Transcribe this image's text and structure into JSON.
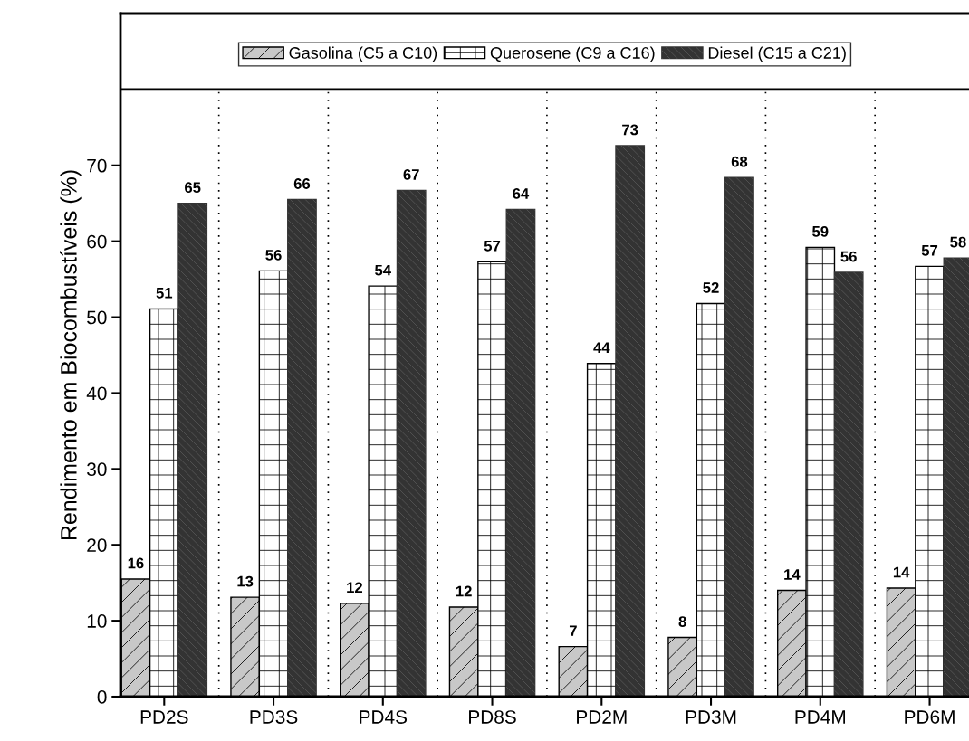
{
  "chart_data": {
    "type": "bar",
    "ylabel": "Rendimento em Biocombustíveis (%)",
    "categories": [
      "PD2S",
      "PD3S",
      "PD4S",
      "PD8S",
      "PD2M",
      "PD3M",
      "PD4M",
      "PD6M"
    ],
    "series": [
      {
        "name": "Gasolina (C5 a C10)",
        "color": "#c8c8c8",
        "values": [
          15.5,
          13.1,
          12.3,
          11.8,
          6.6,
          7.8,
          14.0,
          14.3
        ],
        "value_labels": [
          "16",
          "13",
          "12",
          "12",
          "7",
          "8",
          "14",
          "14"
        ]
      },
      {
        "name": "Querosene (C9 a C16)",
        "color": "#ffffff",
        "values": [
          51.1,
          56.1,
          54.1,
          57.3,
          43.9,
          51.8,
          59.2,
          56.7
        ],
        "value_labels": [
          "51",
          "56",
          "54",
          "57",
          "44",
          "52",
          "59",
          "57"
        ]
      },
      {
        "name": "Diesel (C15 a C21)",
        "color": "#333333",
        "values": [
          65.0,
          65.5,
          66.7,
          64.2,
          72.6,
          68.4,
          55.9,
          57.8
        ],
        "value_labels": [
          "65",
          "66",
          "67",
          "64",
          "73",
          "68",
          "56",
          "58"
        ]
      }
    ],
    "ylim": [
      0,
      90
    ],
    "ref_lines": [
      {
        "axis": "y",
        "value": 80,
        "color": "#000000",
        "line_style": "solid"
      }
    ],
    "yticks": [
      0,
      10,
      20,
      30,
      40,
      50,
      60,
      70
    ],
    "grid": "x",
    "legend": "top"
  }
}
